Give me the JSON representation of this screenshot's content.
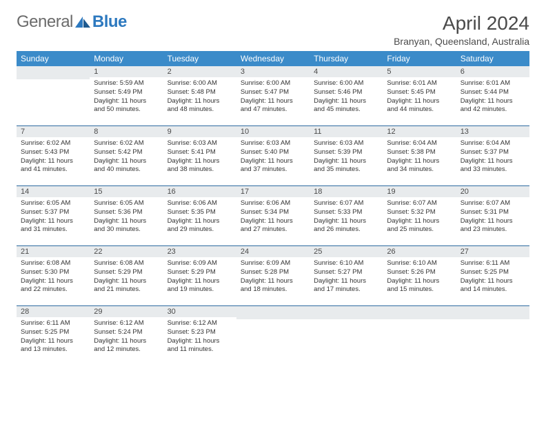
{
  "brand": {
    "part1": "General",
    "part2": "Blue"
  },
  "title": "April 2024",
  "location": "Branyan, Queensland, Australia",
  "colors": {
    "header_bg": "#3b8bc9",
    "daynum_bg": "#e8ebed",
    "row_border": "#2d6aa0",
    "brand_blue": "#2d79bf",
    "brand_grey": "#6b6b6b",
    "text": "#333333"
  },
  "day_headers": [
    "Sunday",
    "Monday",
    "Tuesday",
    "Wednesday",
    "Thursday",
    "Friday",
    "Saturday"
  ],
  "weeks": [
    [
      {
        "n": "",
        "sr": "",
        "ss": "",
        "dl": ""
      },
      {
        "n": "1",
        "sr": "5:59 AM",
        "ss": "5:49 PM",
        "dl": "11 hours and 50 minutes."
      },
      {
        "n": "2",
        "sr": "6:00 AM",
        "ss": "5:48 PM",
        "dl": "11 hours and 48 minutes."
      },
      {
        "n": "3",
        "sr": "6:00 AM",
        "ss": "5:47 PM",
        "dl": "11 hours and 47 minutes."
      },
      {
        "n": "4",
        "sr": "6:00 AM",
        "ss": "5:46 PM",
        "dl": "11 hours and 45 minutes."
      },
      {
        "n": "5",
        "sr": "6:01 AM",
        "ss": "5:45 PM",
        "dl": "11 hours and 44 minutes."
      },
      {
        "n": "6",
        "sr": "6:01 AM",
        "ss": "5:44 PM",
        "dl": "11 hours and 42 minutes."
      }
    ],
    [
      {
        "n": "7",
        "sr": "6:02 AM",
        "ss": "5:43 PM",
        "dl": "11 hours and 41 minutes."
      },
      {
        "n": "8",
        "sr": "6:02 AM",
        "ss": "5:42 PM",
        "dl": "11 hours and 40 minutes."
      },
      {
        "n": "9",
        "sr": "6:03 AM",
        "ss": "5:41 PM",
        "dl": "11 hours and 38 minutes."
      },
      {
        "n": "10",
        "sr": "6:03 AM",
        "ss": "5:40 PM",
        "dl": "11 hours and 37 minutes."
      },
      {
        "n": "11",
        "sr": "6:03 AM",
        "ss": "5:39 PM",
        "dl": "11 hours and 35 minutes."
      },
      {
        "n": "12",
        "sr": "6:04 AM",
        "ss": "5:38 PM",
        "dl": "11 hours and 34 minutes."
      },
      {
        "n": "13",
        "sr": "6:04 AM",
        "ss": "5:37 PM",
        "dl": "11 hours and 33 minutes."
      }
    ],
    [
      {
        "n": "14",
        "sr": "6:05 AM",
        "ss": "5:37 PM",
        "dl": "11 hours and 31 minutes."
      },
      {
        "n": "15",
        "sr": "6:05 AM",
        "ss": "5:36 PM",
        "dl": "11 hours and 30 minutes."
      },
      {
        "n": "16",
        "sr": "6:06 AM",
        "ss": "5:35 PM",
        "dl": "11 hours and 29 minutes."
      },
      {
        "n": "17",
        "sr": "6:06 AM",
        "ss": "5:34 PM",
        "dl": "11 hours and 27 minutes."
      },
      {
        "n": "18",
        "sr": "6:07 AM",
        "ss": "5:33 PM",
        "dl": "11 hours and 26 minutes."
      },
      {
        "n": "19",
        "sr": "6:07 AM",
        "ss": "5:32 PM",
        "dl": "11 hours and 25 minutes."
      },
      {
        "n": "20",
        "sr": "6:07 AM",
        "ss": "5:31 PM",
        "dl": "11 hours and 23 minutes."
      }
    ],
    [
      {
        "n": "21",
        "sr": "6:08 AM",
        "ss": "5:30 PM",
        "dl": "11 hours and 22 minutes."
      },
      {
        "n": "22",
        "sr": "6:08 AM",
        "ss": "5:29 PM",
        "dl": "11 hours and 21 minutes."
      },
      {
        "n": "23",
        "sr": "6:09 AM",
        "ss": "5:29 PM",
        "dl": "11 hours and 19 minutes."
      },
      {
        "n": "24",
        "sr": "6:09 AM",
        "ss": "5:28 PM",
        "dl": "11 hours and 18 minutes."
      },
      {
        "n": "25",
        "sr": "6:10 AM",
        "ss": "5:27 PM",
        "dl": "11 hours and 17 minutes."
      },
      {
        "n": "26",
        "sr": "6:10 AM",
        "ss": "5:26 PM",
        "dl": "11 hours and 15 minutes."
      },
      {
        "n": "27",
        "sr": "6:11 AM",
        "ss": "5:25 PM",
        "dl": "11 hours and 14 minutes."
      }
    ],
    [
      {
        "n": "28",
        "sr": "6:11 AM",
        "ss": "5:25 PM",
        "dl": "11 hours and 13 minutes."
      },
      {
        "n": "29",
        "sr": "6:12 AM",
        "ss": "5:24 PM",
        "dl": "11 hours and 12 minutes."
      },
      {
        "n": "30",
        "sr": "6:12 AM",
        "ss": "5:23 PM",
        "dl": "11 hours and 11 minutes."
      },
      {
        "n": "",
        "sr": "",
        "ss": "",
        "dl": ""
      },
      {
        "n": "",
        "sr": "",
        "ss": "",
        "dl": ""
      },
      {
        "n": "",
        "sr": "",
        "ss": "",
        "dl": ""
      },
      {
        "n": "",
        "sr": "",
        "ss": "",
        "dl": ""
      }
    ]
  ],
  "labels": {
    "sunrise": "Sunrise: ",
    "sunset": "Sunset: ",
    "daylight": "Daylight: "
  }
}
